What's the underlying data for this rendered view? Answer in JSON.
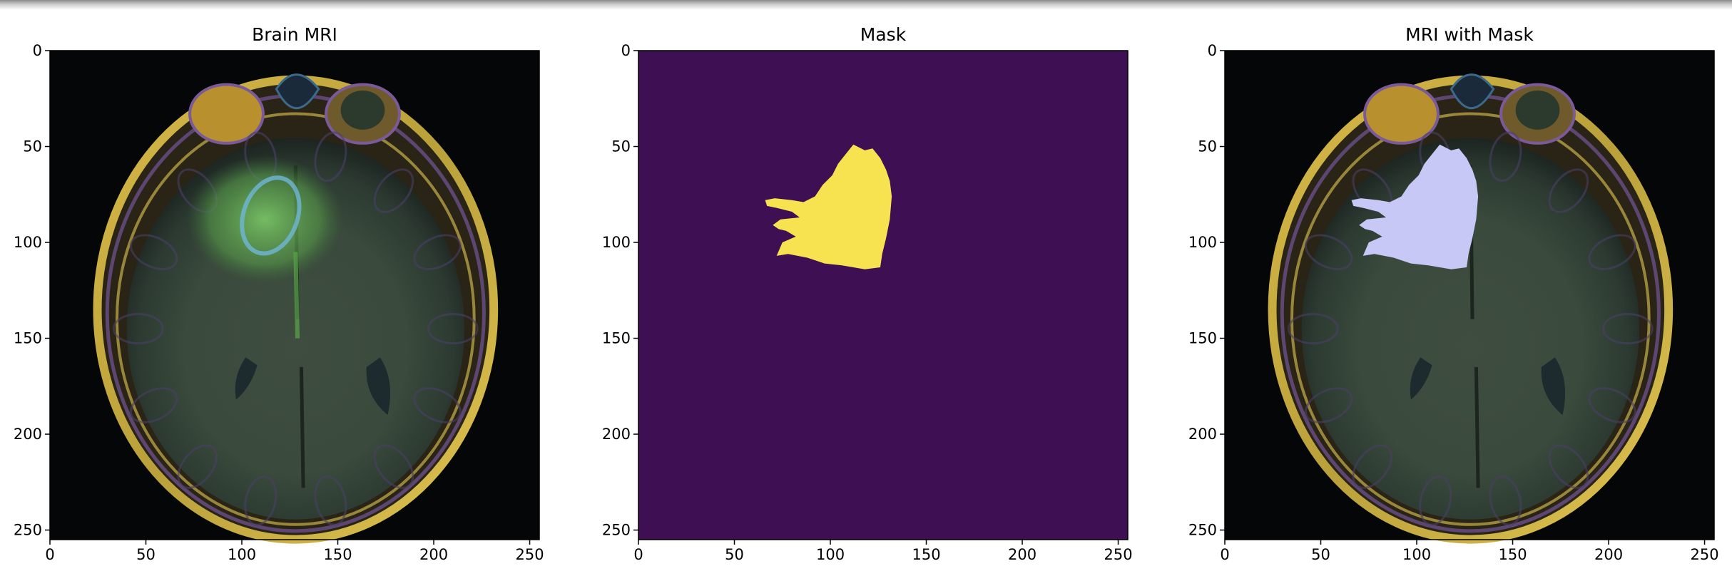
{
  "chart_data": [
    {
      "type": "image",
      "title": "Brain MRI",
      "xlim": [
        0,
        255
      ],
      "ylim": [
        255,
        0
      ],
      "xticks": [
        0,
        50,
        100,
        150,
        200,
        250
      ],
      "yticks": [
        0,
        50,
        100,
        150,
        200,
        250
      ],
      "content": "mri",
      "overlay": "tumor-bright"
    },
    {
      "type": "image",
      "title": "Mask",
      "xlim": [
        0,
        255
      ],
      "ylim": [
        255,
        0
      ],
      "xticks": [
        0,
        50,
        100,
        150,
        200,
        250
      ],
      "yticks": [
        0,
        50,
        100,
        150,
        200,
        250
      ],
      "content": "mask",
      "background_color": "#3f0f54",
      "mask_color": "#f7e34f"
    },
    {
      "type": "image",
      "title": "MRI with Mask",
      "xlim": [
        0,
        255
      ],
      "ylim": [
        255,
        0
      ],
      "xticks": [
        0,
        50,
        100,
        150,
        200,
        250
      ],
      "yticks": [
        0,
        50,
        100,
        150,
        200,
        250
      ],
      "content": "mri",
      "overlay": "mask",
      "mask_color": "#c7c8f6"
    }
  ]
}
